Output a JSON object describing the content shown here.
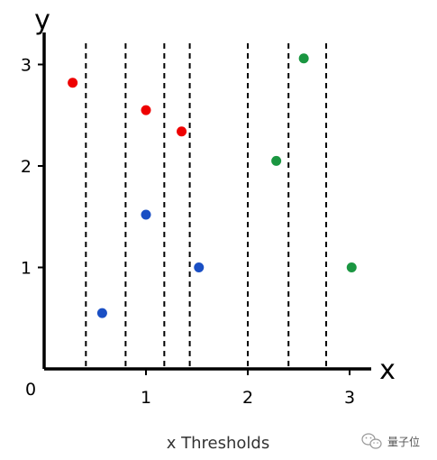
{
  "chart_data": {
    "type": "scatter",
    "xlabel": "x Thresholds",
    "x_axis_name": "x",
    "y_axis_name": "y",
    "origin_label": "0",
    "xlim": [
      0,
      3.3
    ],
    "ylim": [
      0,
      3.3
    ],
    "x_ticks": [
      1,
      2,
      3
    ],
    "y_ticks": [
      1,
      2,
      3
    ],
    "thresholds": [
      0.41,
      0.8,
      1.18,
      1.43,
      2.0,
      2.4,
      2.77
    ],
    "series": [
      {
        "color": "#ee0000",
        "points": [
          [
            0.28,
            2.82
          ],
          [
            1.0,
            2.55
          ],
          [
            1.35,
            2.34
          ]
        ]
      },
      {
        "color": "#1a4fc4",
        "points": [
          [
            0.57,
            0.55
          ],
          [
            1.0,
            1.52
          ],
          [
            1.52,
            1.0
          ]
        ]
      },
      {
        "color": "#1a9641",
        "points": [
          [
            2.55,
            3.06
          ],
          [
            2.28,
            2.05
          ],
          [
            3.02,
            1.0
          ]
        ]
      }
    ],
    "grid": false,
    "legend": "none"
  },
  "watermark": {
    "text": "量子位",
    "icon": "wechat-icon"
  }
}
